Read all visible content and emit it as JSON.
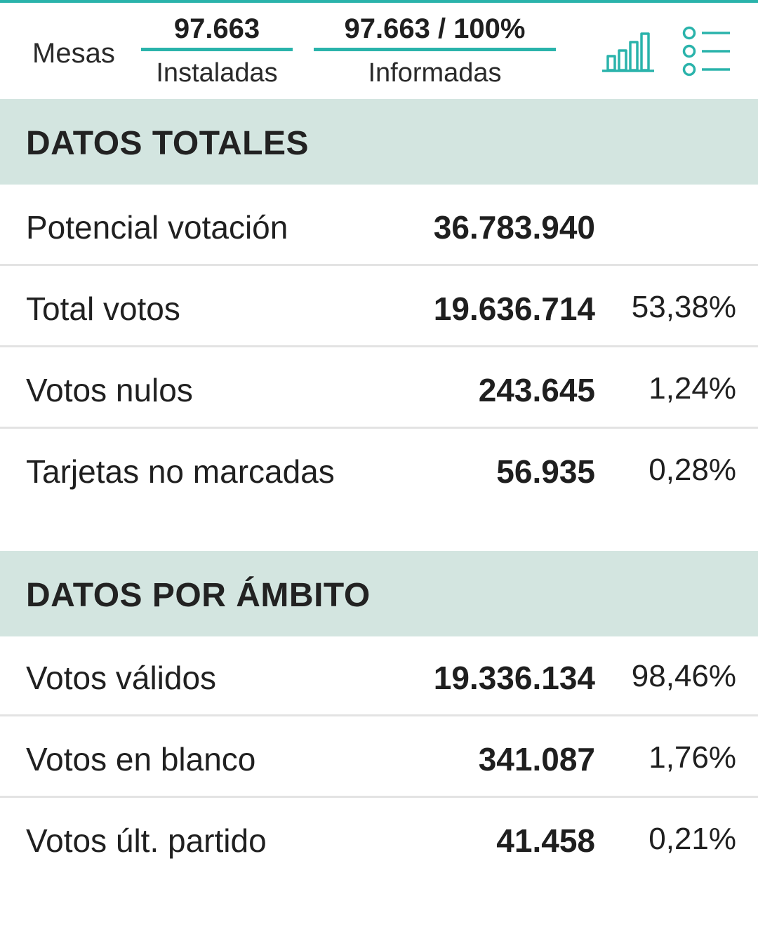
{
  "header": {
    "mesas_label": "Mesas",
    "instaladas": {
      "value": "97.663",
      "label": "Instaladas"
    },
    "informadas": {
      "value": "97.663 / 100%",
      "label": "Informadas"
    },
    "chart_button_icon": "bar-chart-icon",
    "list_button_icon": "list-icon",
    "accent_color": "#2ab3ab"
  },
  "totales": {
    "title": "DATOS TOTALES",
    "rows": [
      {
        "label": "Potencial votación",
        "value": "36.783.940",
        "pct": ""
      },
      {
        "label": "Total votos",
        "value": "19.636.714",
        "pct": "53,38%"
      },
      {
        "label": "Votos nulos",
        "value": "243.645",
        "pct": "1,24%"
      },
      {
        "label": "Tarjetas no marcadas",
        "value": "56.935",
        "pct": "0,28%"
      }
    ]
  },
  "ambito": {
    "title": "DATOS POR ÁMBITO",
    "rows": [
      {
        "label": "Votos válidos",
        "value": "19.336.134",
        "pct": "98,46%"
      },
      {
        "label": "Votos en blanco",
        "value": "341.087",
        "pct": "1,76%"
      },
      {
        "label": "Votos últ. partido",
        "value": "41.458",
        "pct": "0,21%"
      }
    ]
  },
  "colors": {
    "section_bg": "#d3e5e0",
    "divider": "#e3e3e3"
  }
}
